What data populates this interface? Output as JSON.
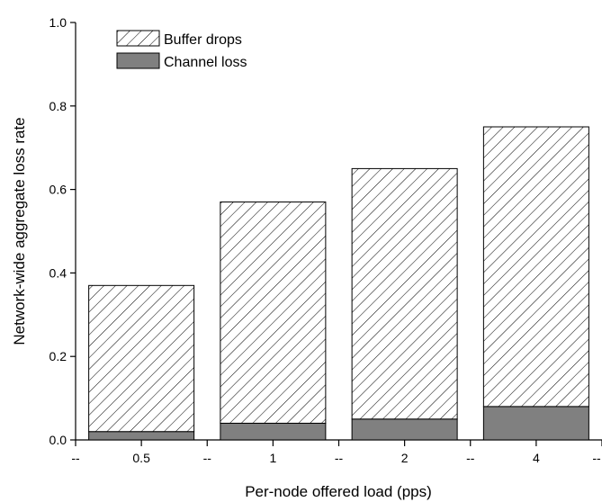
{
  "chart_data": {
    "type": "bar",
    "stacked": true,
    "categories": [
      "0.5",
      "1",
      "2",
      "4"
    ],
    "series": [
      {
        "name": "Channel loss",
        "values": [
          0.02,
          0.04,
          0.05,
          0.08
        ],
        "color": "#808080",
        "pattern": "solid"
      },
      {
        "name": "Buffer drops",
        "values": [
          0.35,
          0.53,
          0.6,
          0.67
        ],
        "color": "#ffffff",
        "pattern": "diagonal-hatch"
      }
    ],
    "xlabel": "Per-node offered load (pps)",
    "ylabel": "Network-wide aggregate loss rate",
    "ylim": [
      0,
      1.0
    ],
    "yticks": [
      "0.0",
      "0.2",
      "0.4",
      "0.6",
      "0.8",
      "1.0"
    ],
    "x_separator_label": "--",
    "legend": {
      "placement": "top-left",
      "entries": [
        "Buffer drops",
        "Channel loss"
      ]
    },
    "grid": false
  }
}
